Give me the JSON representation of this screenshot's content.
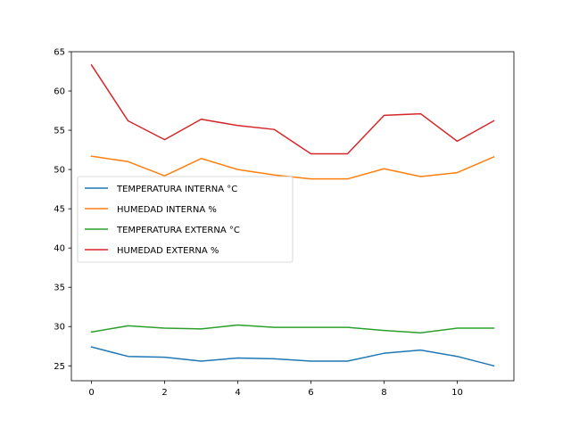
{
  "chart_data": {
    "type": "line",
    "title": "",
    "xlabel": "",
    "ylabel": "",
    "xlim": [
      -0.55,
      11.55
    ],
    "ylim": [
      23.1,
      65.0
    ],
    "xticks": [
      0,
      2,
      4,
      6,
      8,
      10
    ],
    "yticks": [
      25,
      30,
      35,
      40,
      45,
      50,
      55,
      60,
      65
    ],
    "grid": false,
    "legend_position": "center-left",
    "x": [
      0,
      1,
      2,
      3,
      4,
      5,
      6,
      7,
      8,
      9,
      10,
      11
    ],
    "series": [
      {
        "name": "TEMPERATURA INTERNA °C",
        "color": "#1f77b4",
        "values": [
          27.4,
          26.2,
          26.1,
          25.6,
          26.0,
          25.9,
          25.6,
          25.6,
          26.6,
          27.0,
          26.2,
          25.0
        ]
      },
      {
        "name": "HUMEDAD INTERNA %",
        "color": "#ff7f0e",
        "values": [
          51.7,
          51.0,
          49.2,
          51.4,
          50.0,
          49.3,
          48.8,
          48.8,
          50.1,
          49.1,
          49.6,
          51.6
        ]
      },
      {
        "name": "TEMPERATURA EXTERNA °C",
        "color": "#2ca02c",
        "values": [
          29.3,
          30.1,
          29.8,
          29.7,
          30.2,
          29.9,
          29.9,
          29.9,
          29.5,
          29.2,
          29.8,
          29.8
        ]
      },
      {
        "name": "HUMEDAD EXTERNA %",
        "color": "#d62728",
        "values": [
          63.3,
          56.2,
          53.8,
          56.4,
          55.6,
          55.1,
          52.0,
          52.0,
          56.9,
          57.1,
          53.6,
          56.2
        ]
      }
    ]
  }
}
